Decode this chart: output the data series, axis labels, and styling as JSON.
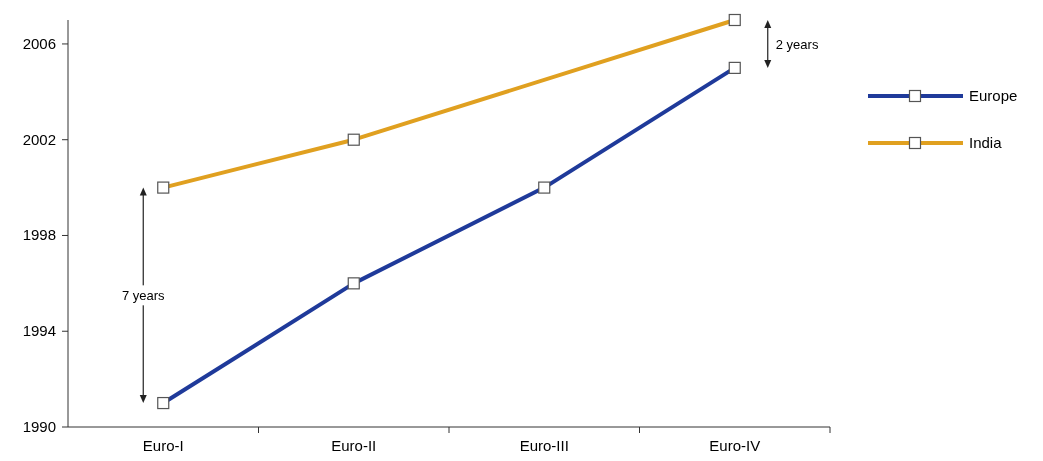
{
  "chart_data": {
    "type": "line",
    "categories": [
      "Euro-I",
      "Euro-II",
      "Euro-III",
      "Euro-IV"
    ],
    "series": [
      {
        "name": "Europe",
        "color": "#1f3a9a",
        "values": [
          1991,
          1996,
          2000,
          2005
        ]
      },
      {
        "name": "India",
        "color": "#e0a020",
        "values": [
          2000,
          2002,
          null,
          2007
        ]
      }
    ],
    "ylim": [
      1990,
      2007
    ],
    "yticks": [
      1990,
      1994,
      1998,
      2002,
      2006
    ],
    "marker": "square",
    "legend": "right",
    "grid": false,
    "annotations": [
      "7 years",
      "2 years"
    ]
  }
}
